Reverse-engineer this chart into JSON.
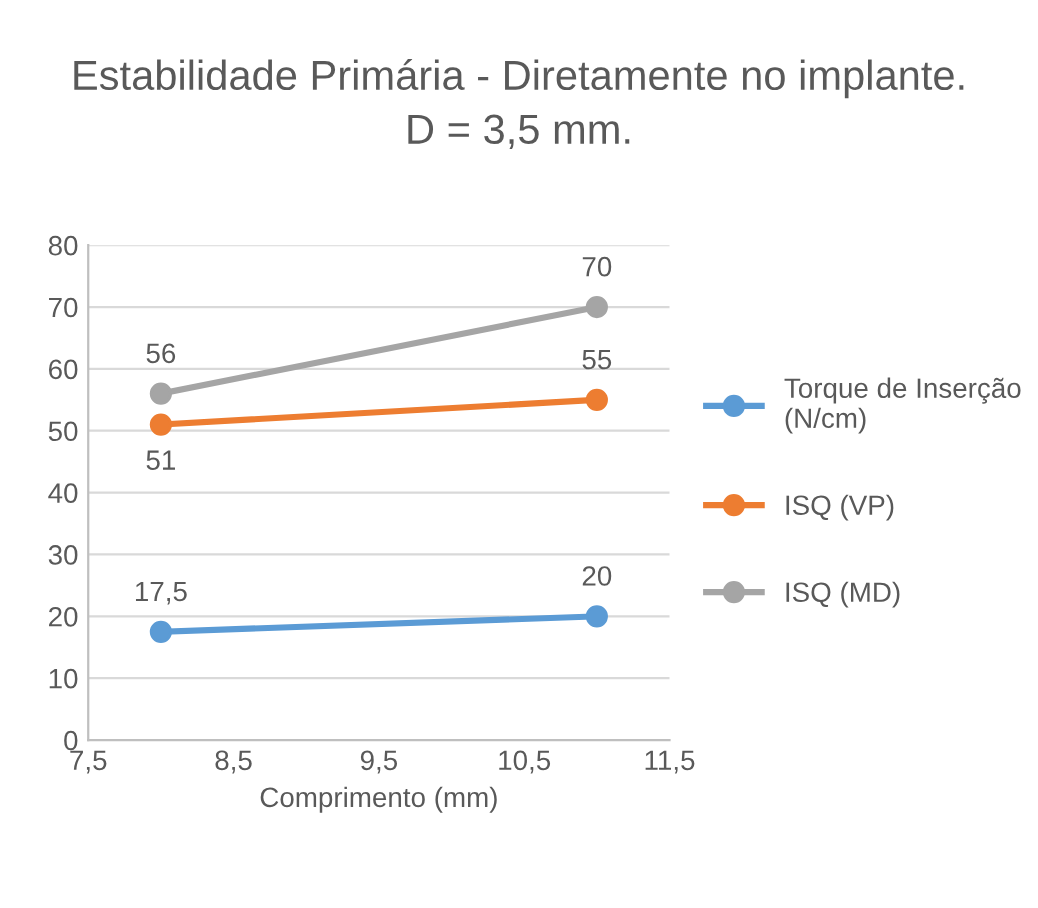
{
  "chart_data": {
    "type": "line",
    "title": "Estabilidade Primária - Diretamente no implante.\nD = 3,5 mm.",
    "xlabel": "Comprimento (mm)",
    "x": [
      8,
      11
    ],
    "series": [
      {
        "name": "Torque de Inserção\n(N/cm)",
        "color": "#5b9bd5",
        "values": [
          17.5,
          20
        ],
        "value_labels": [
          "17,5",
          "20"
        ]
      },
      {
        "name": "ISQ (VP)",
        "color": "#ed7d31",
        "values": [
          51,
          55
        ],
        "value_labels": [
          "51",
          "55"
        ]
      },
      {
        "name": "ISQ (MD)",
        "color": "#a5a5a5",
        "values": [
          56,
          70
        ],
        "value_labels": [
          "56",
          "70"
        ]
      }
    ],
    "xlim": [
      7.5,
      11.5
    ],
    "xticks": [
      {
        "value": 7.5,
        "label": "7,5"
      },
      {
        "value": 8.5,
        "label": "8,5"
      },
      {
        "value": 9.5,
        "label": "9,5"
      },
      {
        "value": 10.5,
        "label": "10,5"
      },
      {
        "value": 11.5,
        "label": "11,5"
      }
    ],
    "ylim": [
      0,
      80
    ],
    "yticks": [
      0,
      10,
      20,
      30,
      40,
      50,
      60,
      70,
      80
    ],
    "grid": "y",
    "legend": "right",
    "marker": "circle",
    "line_style": "solid"
  }
}
